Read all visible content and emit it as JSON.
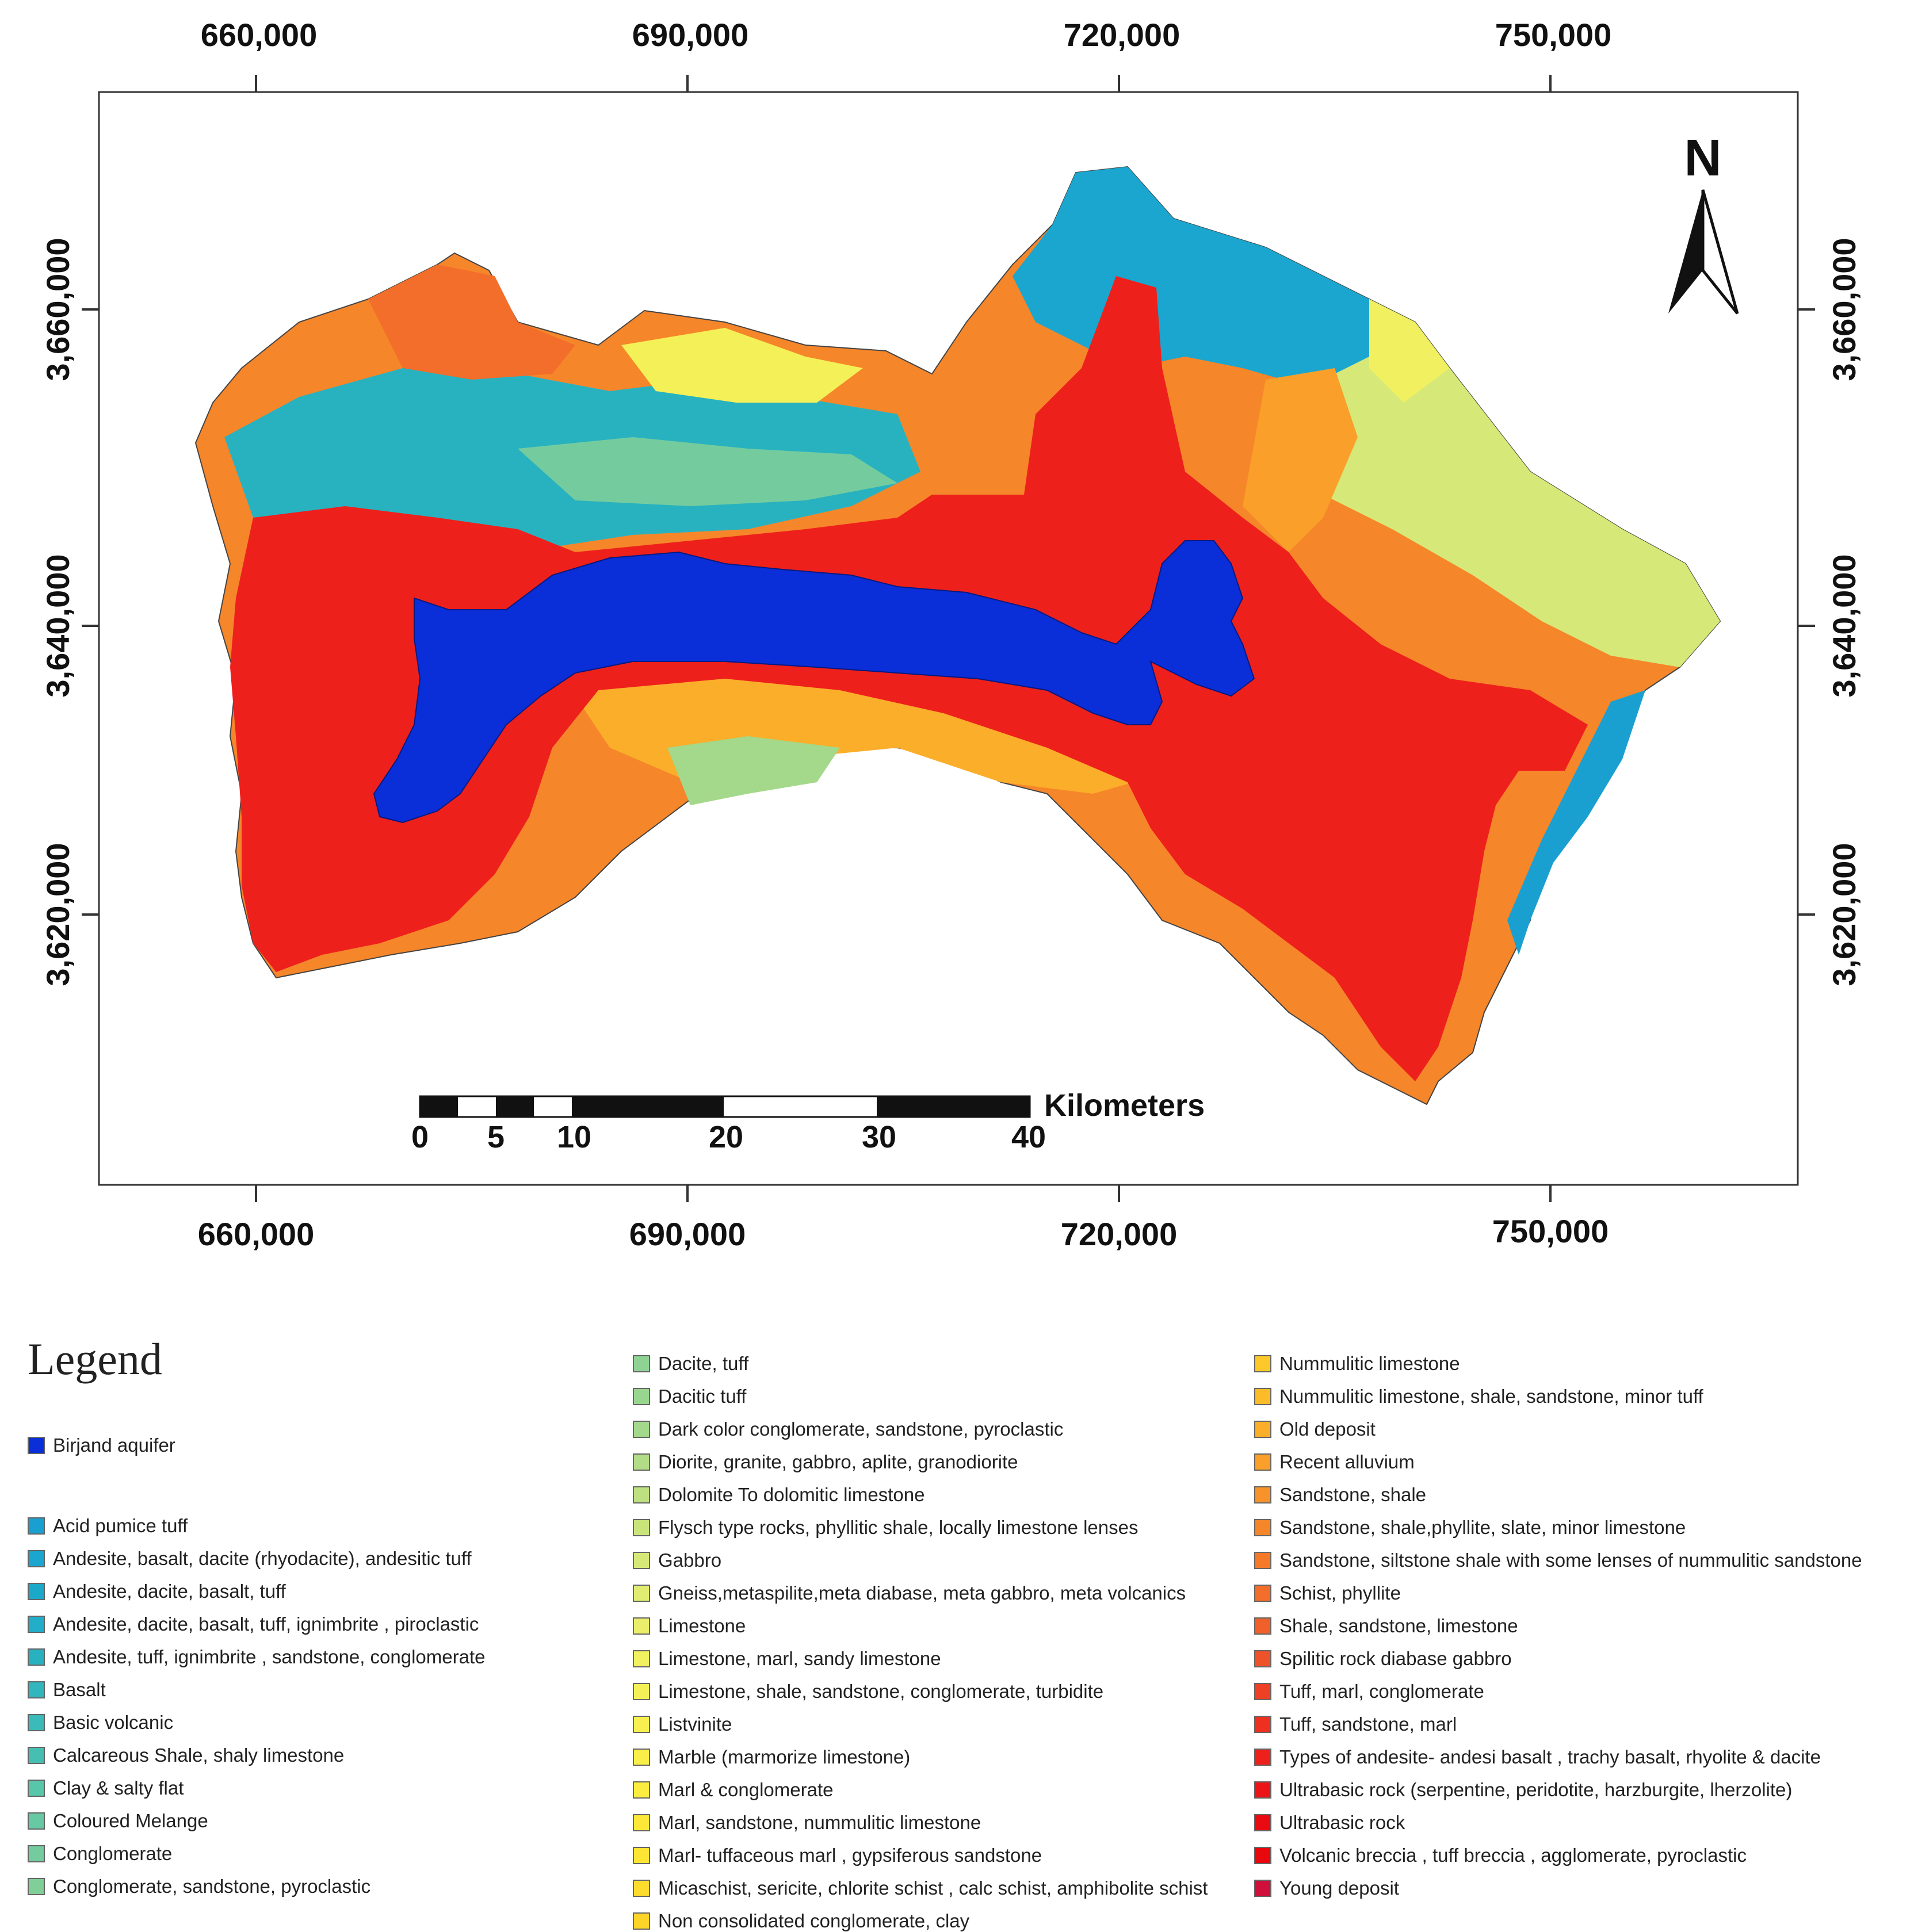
{
  "map": {
    "x_ticks": [
      "660,000",
      "690,000",
      "720,000",
      "750,000"
    ],
    "y_ticks": [
      "3,660,000",
      "3,640,000",
      "3,620,000"
    ],
    "north_label": "N",
    "scale_bar": {
      "unit_label": "Kilometers",
      "tick_labels": [
        "0",
        "5",
        "10",
        "20",
        "30",
        "40"
      ]
    }
  },
  "legend": {
    "title": "Legend",
    "aquifer": {
      "label": "Birjand aquifer",
      "color": "#0a2fd8"
    },
    "columns": [
      [
        {
          "label": "Acid pumice tuff",
          "color": "#1aa0d0"
        },
        {
          "label": "Andesite, basalt, dacite (rhyodacite), andesitic tuff",
          "color": "#1aa6cf"
        },
        {
          "label": "Andesite, dacite, basalt, tuff",
          "color": "#1ca8c8"
        },
        {
          "label": "Andesite, dacite, basalt, tuff, ignimbrite , piroclastic",
          "color": "#22aec8"
        },
        {
          "label": "Andesite, tuff, ignimbrite , sandstone, conglomerate",
          "color": "#28b2c0"
        },
        {
          "label": "Basalt",
          "color": "#30b6bc"
        },
        {
          "label": "Basic volcanic",
          "color": "#3abab8"
        },
        {
          "label": "Calcareous Shale, shaly limestone",
          "color": "#46bfb2"
        },
        {
          "label": "Clay & salty flat",
          "color": "#58c6a8"
        },
        {
          "label": "Coloured Melange",
          "color": "#66c9a4"
        },
        {
          "label": "Conglomerate",
          "color": "#74cc9e"
        },
        {
          "label": "Conglomerate, sandstone, pyroclastic",
          "color": "#80cf98"
        }
      ],
      [
        {
          "label": "Dacite, tuff",
          "color": "#8ed294"
        },
        {
          "label": "Dacitic tuff",
          "color": "#98d58e"
        },
        {
          "label": "Dark color conglomerate, sandstone, pyroclastic",
          "color": "#a4d88a"
        },
        {
          "label": "Diorite, granite, gabbro, aplite, granodiorite",
          "color": "#b2dc86"
        },
        {
          "label": "Dolomite To dolomitic limestone",
          "color": "#bee080"
        },
        {
          "label": "Flysch type rocks, phyllitic shale, locally limestone lenses",
          "color": "#cae47c"
        },
        {
          "label": "Gabbro",
          "color": "#d6e878"
        },
        {
          "label": "Gneiss,metaspilite,meta diabase, meta gabbro, meta volcanics",
          "color": "#e0ec72"
        },
        {
          "label": "Limestone",
          "color": "#eaee6a"
        },
        {
          "label": "Limestone, marl, sandy limestone",
          "color": "#f0f060"
        },
        {
          "label": "Limestone, shale, sandstone, conglomerate, turbidite",
          "color": "#f4f058"
        },
        {
          "label": "Listvinite",
          "color": "#f8f050"
        },
        {
          "label": "Marble (marmorize limestone)",
          "color": "#faee48"
        },
        {
          "label": "Marl & conglomerate",
          "color": "#fcec40"
        },
        {
          "label": "Marl, sandstone, nummulitic limestone",
          "color": "#fde83a"
        },
        {
          "label": "Marl- tuffaceous marl , gypsiferous sandstone",
          "color": "#fee434"
        },
        {
          "label": "Micaschist, sericite, chlorite schist , calc schist, amphibolite schist",
          "color": "#fedc2e"
        },
        {
          "label": "Non consolidated conglomerate, clay",
          "color": "#fed428"
        }
      ],
      [
        {
          "label": "Nummulitic limestone",
          "color": "#fcc82a"
        },
        {
          "label": "Nummulitic limestone, shale, sandstone, minor tuff",
          "color": "#fcbc2a"
        },
        {
          "label": "Old deposit",
          "color": "#fbae2a"
        },
        {
          "label": "Recent alluvium",
          "color": "#fa9f2a"
        },
        {
          "label": "Sandstone, shale",
          "color": "#f8922a"
        },
        {
          "label": "Sandstone, shale,phyllite, slate, minor limestone",
          "color": "#f6862a"
        },
        {
          "label": "Sandstone, siltstone shale with some lenses of nummulitic sandstone",
          "color": "#f47a2a"
        },
        {
          "label": "Schist, phyllite",
          "color": "#f26e2a"
        },
        {
          "label": "Shale, sandstone, limestone",
          "color": "#f0602a"
        },
        {
          "label": "Spilitic rock diabase gabbro",
          "color": "#ee522a"
        },
        {
          "label": "Tuff, marl, conglomerate",
          "color": "#ee4024"
        },
        {
          "label": "Tuff, sandstone, marl",
          "color": "#ee3020"
        },
        {
          "label": "Types of andesite- andesi basalt , trachy basalt, rhyolite & dacite",
          "color": "#ee201c"
        },
        {
          "label": "Ultrabasic rock (serpentine, peridotite, harzburgite, lherzolite)",
          "color": "#ec1418"
        },
        {
          "label": "Ultrabasic rock",
          "color": "#ea0a12"
        },
        {
          "label": "Volcanic breccia , tuff breccia , agglomerate, pyroclastic",
          "color": "#e8080e"
        },
        {
          "label": "Young deposit",
          "color": "#d0103a"
        }
      ]
    ]
  }
}
